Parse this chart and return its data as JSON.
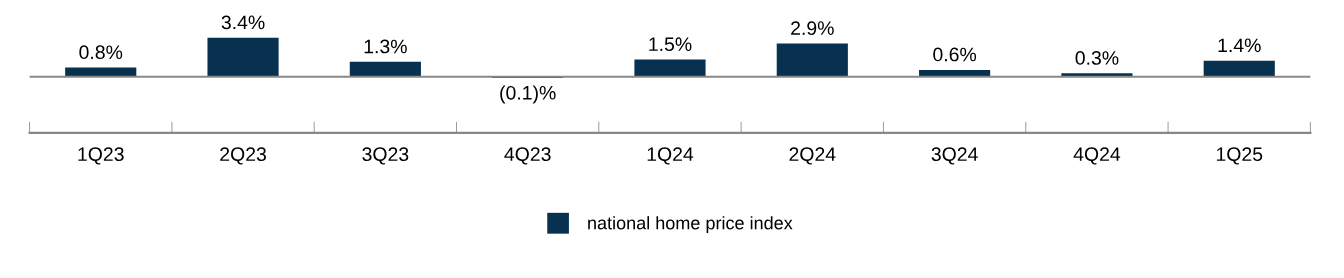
{
  "chart_data": {
    "type": "bar",
    "categories": [
      "1Q23",
      "2Q23",
      "3Q23",
      "4Q23",
      "1Q24",
      "2Q24",
      "3Q24",
      "4Q24",
      "1Q25"
    ],
    "series": [
      {
        "name": "national home price index",
        "color": "#08304f",
        "values": [
          0.8,
          3.4,
          1.3,
          -0.1,
          1.5,
          2.9,
          0.6,
          0.3,
          1.4
        ],
        "value_labels": [
          "0.8%",
          "3.4%",
          "1.3%",
          "(0.1)%",
          "1.5%",
          "2.9%",
          "0.6%",
          "0.3%",
          "1.4%"
        ]
      }
    ],
    "tick_labels": "x",
    "grid": false,
    "legend": "bottom"
  }
}
